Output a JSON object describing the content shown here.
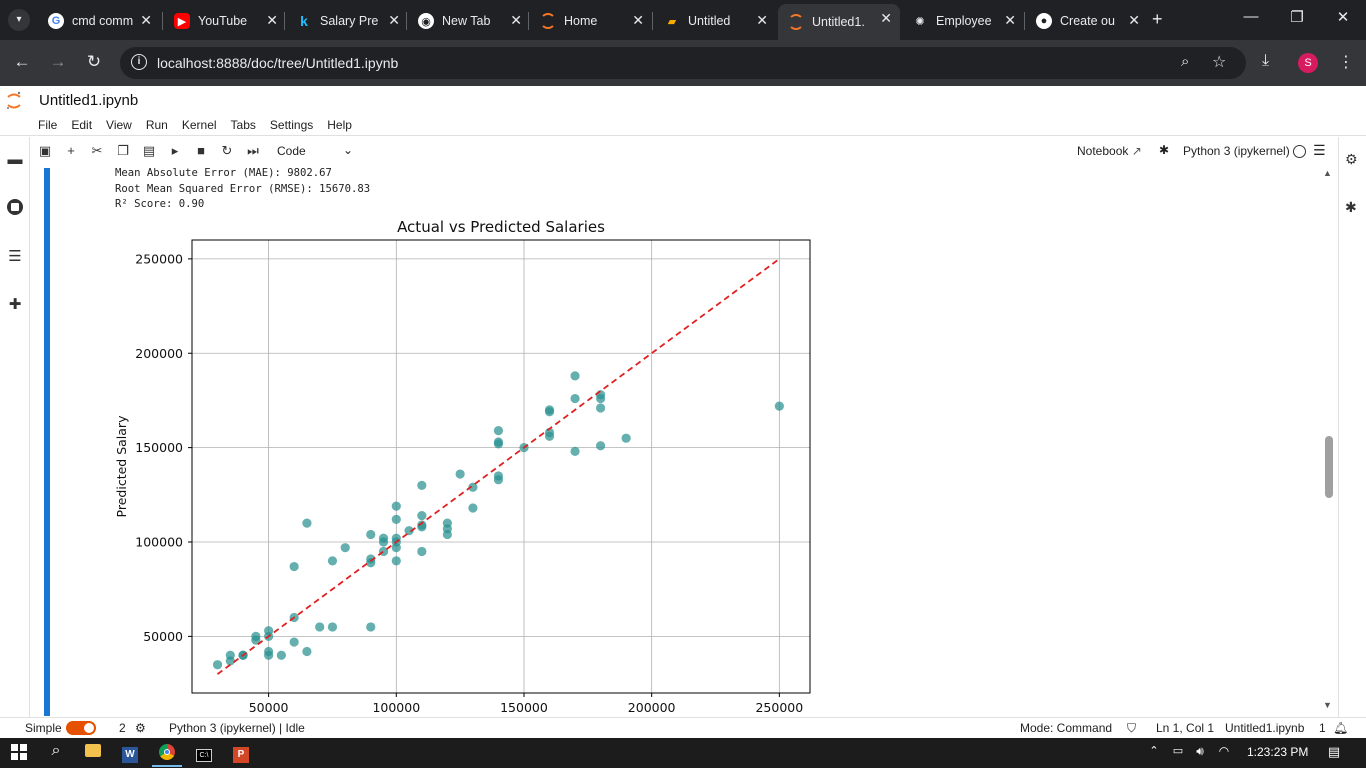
{
  "browser": {
    "tabs": [
      {
        "title": "cmd comm",
        "icon": "google-icon",
        "active": false
      },
      {
        "title": "YouTube",
        "icon": "youtube-icon",
        "active": false
      },
      {
        "title": "Salary Pre",
        "icon": "kaggle-icon",
        "active": false
      },
      {
        "title": "New Tab",
        "icon": "chrome-icon",
        "active": false
      },
      {
        "title": "Home",
        "icon": "jupyter-icon",
        "active": false
      },
      {
        "title": "Untitled",
        "icon": "notebook-icon",
        "active": false
      },
      {
        "title": "Untitled1.",
        "icon": "jupyter-icon",
        "active": true
      },
      {
        "title": "Employee",
        "icon": "chatgpt-icon",
        "active": false
      },
      {
        "title": "Create ou",
        "icon": "github-icon",
        "active": false
      }
    ],
    "url": "localhost:8888/doc/tree/Untitled1.ipynb",
    "profile_initial": "S"
  },
  "jupyter": {
    "doc_title": "Untitled1.ipynb",
    "menu": [
      "File",
      "Edit",
      "View",
      "Run",
      "Kernel",
      "Tabs",
      "Settings",
      "Help"
    ],
    "cell_type": "Code",
    "notebook_label": "Notebook",
    "kernel_label": "Python 3 (ipykernel)"
  },
  "output_lines": [
    "Mean Absolute Error (MAE): 9802.67",
    "Root Mean Squared Error (RMSE): 15670.83",
    "R² Score: 0.90"
  ],
  "chart_data": {
    "type": "scatter",
    "title": "Actual vs Predicted Salaries",
    "xlabel": "",
    "ylabel": "Predicted Salary",
    "xlim": [
      20000,
      262000
    ],
    "ylim": [
      20000,
      260000
    ],
    "xticks": [
      50000,
      100000,
      150000,
      200000,
      250000
    ],
    "yticks": [
      50000,
      100000,
      150000,
      200000,
      250000
    ],
    "grid": true,
    "point_color": "#2a9090",
    "line_color": "#e02020",
    "reference_line": {
      "from": [
        30000,
        30000
      ],
      "to": [
        250000,
        250000
      ]
    },
    "points": [
      [
        30000,
        35000
      ],
      [
        35000,
        40000
      ],
      [
        35000,
        37000
      ],
      [
        40000,
        40000
      ],
      [
        40000,
        40000
      ],
      [
        45000,
        48000
      ],
      [
        45000,
        50000
      ],
      [
        50000,
        53000
      ],
      [
        50000,
        50000
      ],
      [
        50000,
        42000
      ],
      [
        50000,
        40000
      ],
      [
        55000,
        40000
      ],
      [
        60000,
        60000
      ],
      [
        60000,
        47000
      ],
      [
        60000,
        87000
      ],
      [
        65000,
        42000
      ],
      [
        65000,
        110000
      ],
      [
        70000,
        55000
      ],
      [
        75000,
        55000
      ],
      [
        75000,
        90000
      ],
      [
        80000,
        97000
      ],
      [
        90000,
        55000
      ],
      [
        90000,
        89000
      ],
      [
        90000,
        91000
      ],
      [
        90000,
        104000
      ],
      [
        95000,
        95000
      ],
      [
        95000,
        100000
      ],
      [
        95000,
        102000
      ],
      [
        100000,
        90000
      ],
      [
        100000,
        97000
      ],
      [
        100000,
        100000
      ],
      [
        100000,
        102000
      ],
      [
        100000,
        112000
      ],
      [
        100000,
        119000
      ],
      [
        105000,
        106000
      ],
      [
        110000,
        95000
      ],
      [
        110000,
        108000
      ],
      [
        110000,
        109000
      ],
      [
        110000,
        114000
      ],
      [
        110000,
        130000
      ],
      [
        120000,
        104000
      ],
      [
        120000,
        107000
      ],
      [
        120000,
        110000
      ],
      [
        125000,
        136000
      ],
      [
        130000,
        118000
      ],
      [
        130000,
        129000
      ],
      [
        140000,
        133000
      ],
      [
        140000,
        135000
      ],
      [
        140000,
        152000
      ],
      [
        140000,
        153000
      ],
      [
        140000,
        159000
      ],
      [
        150000,
        150000
      ],
      [
        160000,
        156000
      ],
      [
        160000,
        158000
      ],
      [
        160000,
        169000
      ],
      [
        160000,
        170000
      ],
      [
        170000,
        148000
      ],
      [
        170000,
        176000
      ],
      [
        170000,
        188000
      ],
      [
        180000,
        151000
      ],
      [
        180000,
        171000
      ],
      [
        180000,
        176000
      ],
      [
        180000,
        178000
      ],
      [
        190000,
        155000
      ],
      [
        250000,
        172000
      ]
    ]
  },
  "status": {
    "mode_label": "Simple",
    "kernel_count": "2",
    "kernel_status": "Python 3 (ipykernel) | Idle",
    "mode": "Mode: Command",
    "position": "Ln 1, Col 1",
    "file": "Untitled1.ipynb",
    "notifications": "1"
  },
  "taskbar": {
    "time": "1:23:23 PM"
  }
}
